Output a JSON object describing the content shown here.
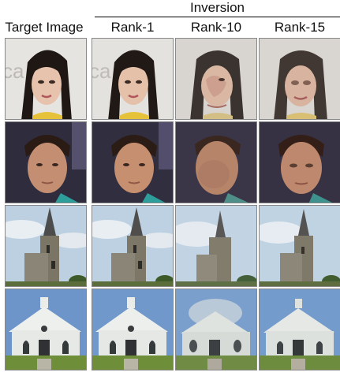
{
  "header": {
    "inversion": "Inversion",
    "target": "Target Image",
    "rank1": "Rank-1",
    "rank10": "Rank-10",
    "rank15": "Rank-15"
  },
  "rows": [
    {
      "subject": "woman-face"
    },
    {
      "subject": "man-face"
    },
    {
      "subject": "church-tower"
    },
    {
      "subject": "white-church"
    }
  ],
  "columns": [
    "target",
    "rank-1",
    "rank-10",
    "rank-15"
  ]
}
